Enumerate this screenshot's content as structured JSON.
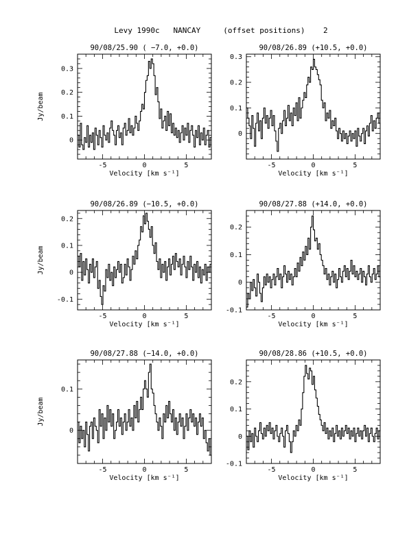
{
  "page_title": "Levy 1990c   NANCAY     (offset positions)    2",
  "chart_data": [
    {
      "type": "line",
      "step": true,
      "title": "90/08/25.90  ( −7.0, +0.0)",
      "xlabel": "Velocity [km s⁻¹]",
      "ylabel": "Jy/beam",
      "xlim": [
        -8,
        8
      ],
      "ylim": [
        -0.08,
        0.36
      ],
      "xticks": [
        -5,
        0,
        5
      ],
      "yticks": [
        0,
        0.1,
        0.2,
        0.3
      ],
      "ytick_labels": [
        "0",
        "0.1",
        "0.2",
        "0.3"
      ],
      "series": [
        {
          "x_start": -8,
          "x_step": 0.16,
          "values": [
            0.02,
            -0.03,
            0.07,
            -0.02,
            -0.04,
            0.01,
            -0.01,
            0.06,
            -0.03,
            0.02,
            -0.01,
            0.03,
            -0.04,
            0.05,
            0.02,
            -0.02,
            0.04,
            0.01,
            -0.03,
            0.06,
            0.02,
            0.0,
            0.03,
            -0.01,
            0.05,
            0.08,
            0.04,
            0.02,
            -0.02,
            0.04,
            0.06,
            0.01,
            0.03,
            -0.02,
            0.05,
            0.07,
            0.02,
            0.04,
            0.09,
            0.03,
            0.06,
            0.02,
            0.05,
            0.1,
            0.07,
            0.04,
            0.08,
            0.12,
            0.15,
            0.13,
            0.2,
            0.25,
            0.27,
            0.33,
            0.3,
            0.34,
            0.32,
            0.27,
            0.19,
            0.22,
            0.16,
            0.09,
            0.13,
            0.05,
            0.08,
            0.1,
            0.04,
            0.12,
            0.06,
            0.11,
            0.03,
            0.07,
            0.02,
            0.05,
            0.01,
            0.04,
            -0.01,
            0.03,
            0.06,
            0.0,
            0.05,
            0.02,
            0.07,
            -0.01,
            0.04,
            0.06,
            0.02,
            -0.03,
            0.04,
            0.01,
            0.06,
            -0.02,
            0.03,
            0.0,
            0.05,
            -0.02,
            0.02,
            0.04,
            -0.03,
            0.01
          ]
        }
      ]
    },
    {
      "type": "line",
      "step": true,
      "title": "90/08/26.89  (+10.5, +0.0)",
      "xlabel": "Velocity [km s⁻¹]",
      "ylabel": "",
      "xlim": [
        -8,
        8
      ],
      "ylim": [
        -0.1,
        0.31
      ],
      "xticks": [
        -5,
        0,
        5
      ],
      "yticks": [
        0,
        0.1,
        0.2,
        0.3
      ],
      "ytick_labels": [
        "0",
        "0.1",
        "0.2",
        "0.3"
      ],
      "series": [
        {
          "x_start": -8,
          "x_step": 0.16,
          "values": [
            0.1,
            0.06,
            0.03,
            -0.02,
            0.07,
            0.02,
            -0.05,
            0.04,
            0.08,
            0.01,
            0.05,
            -0.02,
            0.06,
            0.1,
            0.04,
            0.07,
            0.02,
            0.06,
            0.09,
            0.03,
            0.07,
            0.01,
            -0.03,
            -0.07,
            0.02,
            0.04,
            0.0,
            0.05,
            0.09,
            0.03,
            0.06,
            0.11,
            0.05,
            0.08,
            0.03,
            0.1,
            0.07,
            0.12,
            0.05,
            0.14,
            0.06,
            0.1,
            0.13,
            0.16,
            0.14,
            0.19,
            0.22,
            0.2,
            0.26,
            0.25,
            0.29,
            0.26,
            0.25,
            0.23,
            0.21,
            0.19,
            0.13,
            0.1,
            0.12,
            0.05,
            0.08,
            0.06,
            0.09,
            0.02,
            0.05,
            0.03,
            0.06,
            0.01,
            -0.02,
            0.02,
            0.0,
            -0.03,
            0.01,
            -0.02,
            0.0,
            -0.04,
            -0.01,
            0.01,
            -0.03,
            0.0,
            -0.02,
            0.01,
            -0.05,
            0.02,
            -0.01,
            -0.03,
            0.0,
            0.02,
            -0.04,
            0.01,
            0.03,
            -0.01,
            0.04,
            0.07,
            0.01,
            0.05,
            0.02,
            0.06,
            0.08,
            0.04
          ]
        }
      ]
    },
    {
      "type": "line",
      "step": true,
      "title": "90/08/26.89  (−10.5, +0.0)",
      "xlabel": "Velocity [km s⁻¹]",
      "ylabel": "Jy/beam",
      "xlim": [
        -8,
        8
      ],
      "ylim": [
        -0.14,
        0.23
      ],
      "xticks": [
        -5,
        0,
        5
      ],
      "yticks": [
        -0.1,
        0,
        0.1,
        0.2
      ],
      "ytick_labels": [
        "-0.1",
        "0",
        "0.1",
        "0.2"
      ],
      "series": [
        {
          "x_start": -8,
          "x_step": 0.16,
          "values": [
            0.06,
            0.02,
            0.07,
            -0.03,
            0.04,
            -0.01,
            0.05,
            0.01,
            -0.04,
            0.03,
            0.0,
            0.05,
            -0.02,
            0.02,
            0.04,
            -0.06,
            -0.03,
            -0.09,
            -0.12,
            -0.05,
            -0.07,
            0.01,
            -0.02,
            0.03,
            -0.03,
            0.0,
            -0.05,
            0.02,
            -0.02,
            0.01,
            0.04,
            0.0,
            0.03,
            -0.04,
            -0.02,
            0.03,
            -0.01,
            0.05,
            0.02,
            -0.03,
            0.01,
            0.06,
            0.03,
            0.08,
            0.05,
            0.1,
            0.12,
            0.17,
            0.15,
            0.21,
            0.18,
            0.22,
            0.19,
            0.16,
            0.13,
            0.17,
            0.1,
            0.07,
            0.11,
            0.04,
            0.01,
            0.05,
            -0.02,
            0.03,
            0.0,
            0.04,
            -0.03,
            0.02,
            0.05,
            -0.01,
            0.03,
            0.06,
            0.01,
            0.07,
            0.04,
            0.02,
            0.05,
            -0.01,
            0.03,
            0.06,
            0.02,
            -0.02,
            0.04,
            0.01,
            0.06,
            0.02,
            -0.03,
            0.03,
            0.0,
            0.04,
            -0.02,
            0.02,
            -0.04,
            0.01,
            -0.01,
            0.03,
            -0.03,
            0.02,
            0.0,
            0.03
          ]
        }
      ]
    },
    {
      "type": "line",
      "step": true,
      "title": "90/08/27.88  (+14.0, +0.0)",
      "xlabel": "Velocity [km s⁻¹]",
      "ylabel": "",
      "xlim": [
        -8,
        8
      ],
      "ylim": [
        -0.1,
        0.26
      ],
      "xticks": [
        -5,
        0,
        5
      ],
      "yticks": [
        -0.1,
        0,
        0.1,
        0.2
      ],
      "ytick_labels": [
        "-0.1",
        "0",
        "0.1",
        "0.2"
      ],
      "series": [
        {
          "x_start": -8,
          "x_step": 0.16,
          "values": [
            -0.09,
            -0.04,
            -0.06,
            0.0,
            -0.03,
            0.01,
            -0.02,
            -0.05,
            0.03,
            0.0,
            -0.04,
            -0.07,
            -0.02,
            0.02,
            -0.01,
            0.03,
            0.0,
            0.02,
            -0.02,
            0.01,
            0.03,
            -0.01,
            0.02,
            0.05,
            0.01,
            0.03,
            -0.02,
            0.02,
            0.06,
            0.03,
            0.0,
            0.04,
            0.01,
            0.03,
            -0.01,
            0.02,
            0.05,
            0.02,
            0.07,
            0.04,
            0.09,
            0.06,
            0.11,
            0.08,
            0.13,
            0.1,
            0.16,
            0.12,
            0.2,
            0.24,
            0.19,
            0.15,
            0.16,
            0.12,
            0.14,
            0.1,
            0.08,
            0.06,
            0.03,
            0.05,
            0.01,
            0.03,
            -0.01,
            0.02,
            0.04,
            0.0,
            0.03,
            -0.02,
            0.01,
            0.05,
            0.02,
            0.0,
            0.04,
            0.06,
            0.02,
            0.05,
            0.01,
            0.04,
            0.08,
            0.03,
            0.06,
            0.02,
            0.04,
            0.01,
            0.03,
            0.05,
            0.0,
            0.04,
            0.02,
            -0.01,
            0.03,
            0.06,
            0.02,
            0.0,
            0.03,
            0.05,
            0.01,
            0.03,
            0.06,
            0.02
          ]
        }
      ]
    },
    {
      "type": "line",
      "step": true,
      "title": "90/08/27.88  (−14.0, +0.0)",
      "xlabel": "Velocity [km s⁻¹]",
      "ylabel": "Jy/beam",
      "xlim": [
        -8,
        8
      ],
      "ylim": [
        -0.08,
        0.17
      ],
      "xticks": [
        -5,
        0,
        5
      ],
      "yticks": [
        0,
        0.1
      ],
      "ytick_labels": [
        "0",
        "0.1"
      ],
      "series": [
        {
          "x_start": -8,
          "x_step": 0.16,
          "values": [
            0.02,
            -0.03,
            0.01,
            -0.02,
            0.0,
            -0.04,
            0.02,
            -0.01,
            -0.05,
            0.01,
            0.02,
            -0.02,
            0.03,
            0.01,
            0.0,
            -0.03,
            0.05,
            0.01,
            0.04,
            -0.02,
            0.03,
            0.0,
            0.06,
            0.02,
            0.05,
            0.01,
            0.04,
            -0.02,
            0.0,
            0.02,
            0.05,
            0.01,
            0.03,
            -0.01,
            0.02,
            0.04,
            0.0,
            0.02,
            0.05,
            0.01,
            0.03,
            0.0,
            0.06,
            0.03,
            0.07,
            0.02,
            0.05,
            0.08,
            0.05,
            0.1,
            0.12,
            0.1,
            0.08,
            0.14,
            0.16,
            0.1,
            0.09,
            0.06,
            0.04,
            0.02,
            0.0,
            0.03,
            0.01,
            -0.02,
            0.04,
            0.02,
            0.06,
            0.03,
            0.07,
            0.04,
            0.02,
            0.05,
            0.0,
            0.03,
            -0.01,
            0.02,
            0.04,
            0.01,
            0.03,
            -0.02,
            0.01,
            0.04,
            0.0,
            0.03,
            0.05,
            0.02,
            0.04,
            0.01,
            0.03,
            -0.01,
            0.02,
            0.04,
            0.01,
            0.03,
            -0.02,
            0.0,
            -0.03,
            -0.05,
            -0.02,
            -0.06
          ]
        }
      ]
    },
    {
      "type": "line",
      "step": true,
      "title": "90/08/28.86  (+10.5, +0.0)",
      "xlabel": "Velocity [km s⁻¹]",
      "ylabel": "",
      "xlim": [
        -8,
        8
      ],
      "ylim": [
        -0.1,
        0.28
      ],
      "xticks": [
        -5,
        0,
        5
      ],
      "yticks": [
        -0.1,
        0,
        0.1,
        0.2
      ],
      "ytick_labels": [
        "-0.1",
        "0",
        "0.1",
        "0.2"
      ],
      "series": [
        {
          "x_start": -8,
          "x_step": 0.16,
          "values": [
            0.0,
            -0.05,
            0.02,
            -0.02,
            0.01,
            -0.04,
            0.03,
            0.0,
            -0.02,
            0.02,
            0.05,
            0.01,
            -0.01,
            0.03,
            0.0,
            0.04,
            0.02,
            0.05,
            0.01,
            0.03,
            -0.01,
            0.02,
            0.04,
            0.0,
            -0.02,
            0.01,
            0.03,
            0.0,
            -0.04,
            0.02,
            0.04,
            0.01,
            -0.02,
            -0.06,
            -0.02,
            0.02,
            0.0,
            0.04,
            0.02,
            0.06,
            0.04,
            0.1,
            0.16,
            0.22,
            0.26,
            0.23,
            0.21,
            0.25,
            0.24,
            0.19,
            0.22,
            0.17,
            0.14,
            0.11,
            0.08,
            0.06,
            0.04,
            0.02,
            0.05,
            0.01,
            0.03,
            -0.01,
            0.02,
            0.0,
            0.03,
            -0.02,
            0.01,
            0.04,
            0.0,
            0.02,
            -0.01,
            0.03,
            0.0,
            0.02,
            0.04,
            0.01,
            0.03,
            -0.01,
            0.02,
            0.0,
            0.03,
            -0.02,
            0.01,
            0.03,
            0.0,
            0.02,
            -0.01,
            0.02,
            0.04,
            0.0,
            0.03,
            -0.02,
            0.01,
            0.03,
            0.0,
            -0.02,
            0.01,
            0.03,
            -0.01,
            0.02
          ]
        }
      ]
    }
  ]
}
